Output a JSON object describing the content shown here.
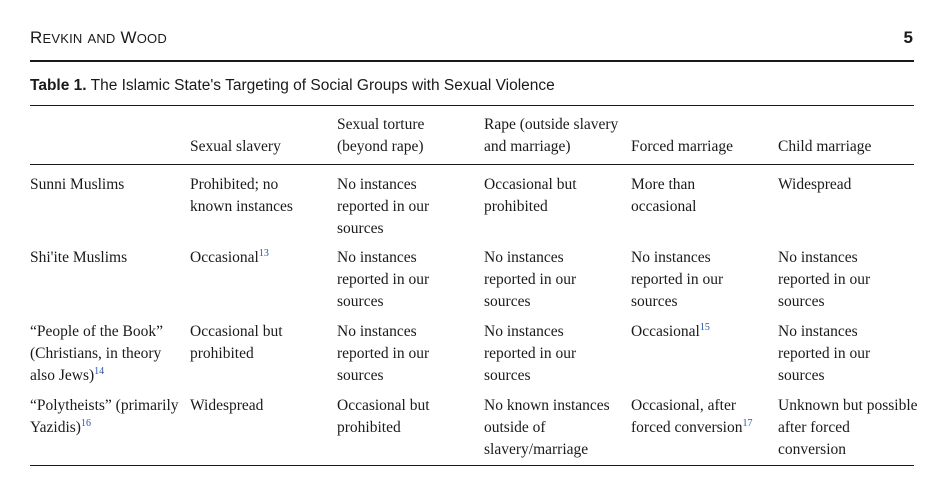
{
  "header": {
    "author_line": "Revkin and Wood",
    "page_number": "5"
  },
  "caption": {
    "label": "Table 1.",
    "title": "The Islamic State's Targeting of Social Groups with Sexual Violence"
  },
  "table": {
    "columns": [
      "",
      "Sexual slavery",
      "Sexual torture (beyond rape)",
      "Rape (outside slavery and marriage)",
      "Forced marriage",
      "Child marriage"
    ],
    "rows": [
      {
        "group": "Sunni Muslims",
        "cells": [
          "Prohibited; no known instances",
          "No instances reported in our sources",
          "Occasional but prohibited",
          "More than occasional",
          "Widespread"
        ]
      },
      {
        "group": "Shi'ite Muslims",
        "cells": [
          "Occasional",
          "No instances reported in our sources",
          "No instances reported in our sources",
          "No instances reported in our sources",
          "No instances reported in our sources"
        ],
        "footnotes": {
          "1": "13"
        }
      },
      {
        "group": "“People of the Book” (Christians, in theory also Jews)",
        "group_footnote": "14",
        "cells": [
          "Occasional but prohibited",
          "No instances reported in our sources",
          "No instances reported in our sources",
          "Occasional",
          "No instances reported in our sources"
        ],
        "footnotes": {
          "4": "15"
        }
      },
      {
        "group": "“Polytheists” (primarily Yazidis)",
        "group_footnote": "16",
        "cells": [
          "Widespread",
          "Occasional but prohibited",
          "No known instances outside of slavery/marriage",
          "Occasional, after forced conversion",
          "Unknown but possible after forced conversion"
        ],
        "footnotes": {
          "4": "17"
        }
      }
    ]
  }
}
